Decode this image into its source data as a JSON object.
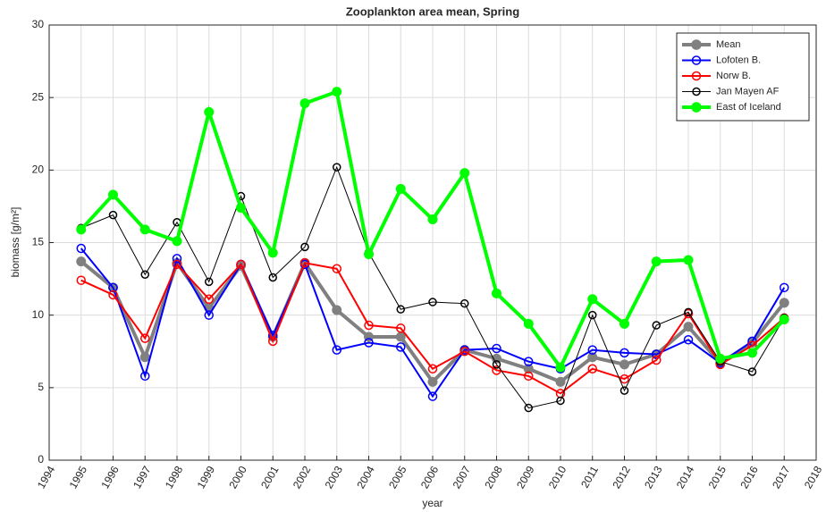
{
  "chart_data": {
    "type": "line",
    "title": "Zooplankton area mean, Spring",
    "xlabel": "year",
    "ylabel": "biomass [g/m²]",
    "x": [
      1995,
      1996,
      1997,
      1998,
      1999,
      2000,
      2001,
      2002,
      2003,
      2004,
      2005,
      2006,
      2007,
      2008,
      2009,
      2010,
      2011,
      2012,
      2013,
      2014,
      2015,
      2016,
      2017
    ],
    "series": [
      {
        "name": "Mean",
        "color": "#808080",
        "values": [
          13.7,
          11.9,
          7.1,
          13.6,
          10.5,
          13.4,
          8.5,
          13.6,
          10.35,
          8.5,
          8.5,
          5.4,
          7.6,
          7.0,
          6.3,
          5.4,
          7.1,
          6.6,
          7.3,
          9.2,
          6.7,
          8.1,
          10.85
        ]
      },
      {
        "name": "Lofoten B.",
        "color": "#0000ff",
        "values": [
          14.6,
          11.9,
          5.8,
          13.9,
          10.0,
          13.5,
          8.6,
          13.5,
          7.6,
          8.1,
          7.8,
          4.4,
          7.6,
          7.7,
          6.8,
          6.3,
          7.6,
          7.4,
          7.3,
          8.3,
          6.7,
          8.2,
          11.9
        ]
      },
      {
        "name": "Norw B.",
        "color": "#ff0000",
        "values": [
          12.4,
          11.4,
          8.4,
          13.5,
          11.1,
          13.5,
          8.2,
          13.6,
          13.2,
          9.3,
          9.1,
          6.3,
          7.5,
          6.2,
          5.8,
          4.6,
          6.3,
          5.6,
          6.9,
          10.1,
          6.6,
          7.9,
          9.8
        ]
      },
      {
        "name": "Jan Mayen AF",
        "color": "#000000",
        "values": [
          16.0,
          16.9,
          12.8,
          16.4,
          12.3,
          18.2,
          12.6,
          14.7,
          20.2,
          14.3,
          10.4,
          10.9,
          10.8,
          6.6,
          3.6,
          4.1,
          10.0,
          4.8,
          9.3,
          10.2,
          6.8,
          6.1,
          9.8
        ]
      },
      {
        "name": "East of Iceland",
        "color": "#00ff00",
        "values": [
          15.9,
          18.3,
          15.9,
          15.1,
          24.0,
          17.4,
          14.3,
          24.6,
          25.4,
          14.2,
          18.7,
          16.6,
          19.8,
          11.5,
          9.4,
          6.4,
          11.1,
          9.4,
          13.7,
          13.8,
          7.0,
          7.4,
          9.7
        ]
      }
    ],
    "xlim": [
      1994,
      2018
    ],
    "xticks": [
      1994,
      1995,
      1996,
      1997,
      1998,
      1999,
      2000,
      2001,
      2002,
      2003,
      2004,
      2005,
      2006,
      2007,
      2008,
      2009,
      2010,
      2011,
      2012,
      2013,
      2014,
      2015,
      2016,
      2017,
      2018
    ],
    "ylim": [
      0,
      30
    ],
    "yticks": [
      0,
      5,
      10,
      15,
      20,
      25,
      30
    ],
    "grid": true,
    "legend": "upper right"
  }
}
